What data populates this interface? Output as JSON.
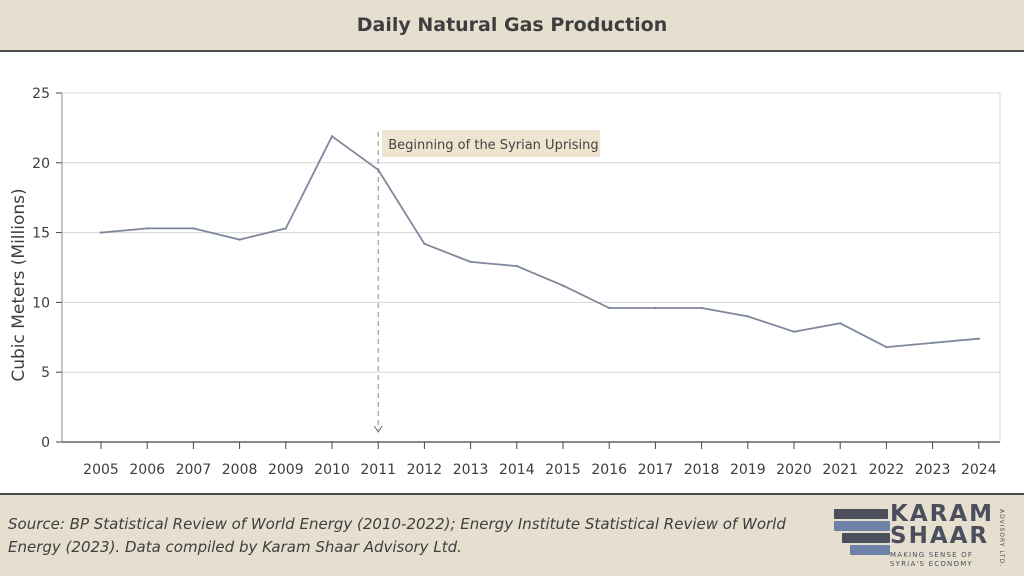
{
  "header": {
    "title": "Daily Natural Gas Production"
  },
  "chart_data": {
    "type": "line",
    "title": "Daily Natural Gas Production",
    "xlabel": "",
    "ylabel": "Cubic Meters (Millions)",
    "x": [
      "2005",
      "2006",
      "2007",
      "2008",
      "2009",
      "2010",
      "2011",
      "2012",
      "2013",
      "2014",
      "2015",
      "2016",
      "2017",
      "2018",
      "2019",
      "2020",
      "2021",
      "2022",
      "2023",
      "2024"
    ],
    "series": [
      {
        "values": [
          15.0,
          15.3,
          15.3,
          14.5,
          15.3,
          21.9,
          19.5,
          14.2,
          12.9,
          12.6,
          11.2,
          9.6,
          9.6,
          9.6,
          9.0,
          7.9,
          8.5,
          6.8,
          7.1,
          7.4
        ]
      }
    ],
    "ylim": [
      0,
      25
    ],
    "yticks": [
      0,
      5,
      10,
      15,
      20,
      25
    ],
    "grid": true,
    "annotations": [
      {
        "x": "2011",
        "text": "Beginning of the Syrian Uprising"
      }
    ],
    "line_color": "#7f879b"
  },
  "footer": {
    "source": "Source: BP Statistical Review of World Energy (2010-2022); Energy Institute Statistical Review of World Energy (2023). Data compiled by Karam Shaar Advisory Ltd.",
    "logo": {
      "line1": "KARAM",
      "line2": "SHAAR",
      "tagline1": "MAKING SENSE OF",
      "tagline2": "SYRIA'S ECONOMY",
      "vertical": "ADVISORY LTD."
    }
  },
  "colors": {
    "band": "#e6dfd0",
    "grid": "#d8d8d8",
    "axis": "#444444",
    "annotation_bg": "#efe4cf",
    "logo_dark": "#4b4f5c",
    "logo_blue": "#6e82a8"
  }
}
